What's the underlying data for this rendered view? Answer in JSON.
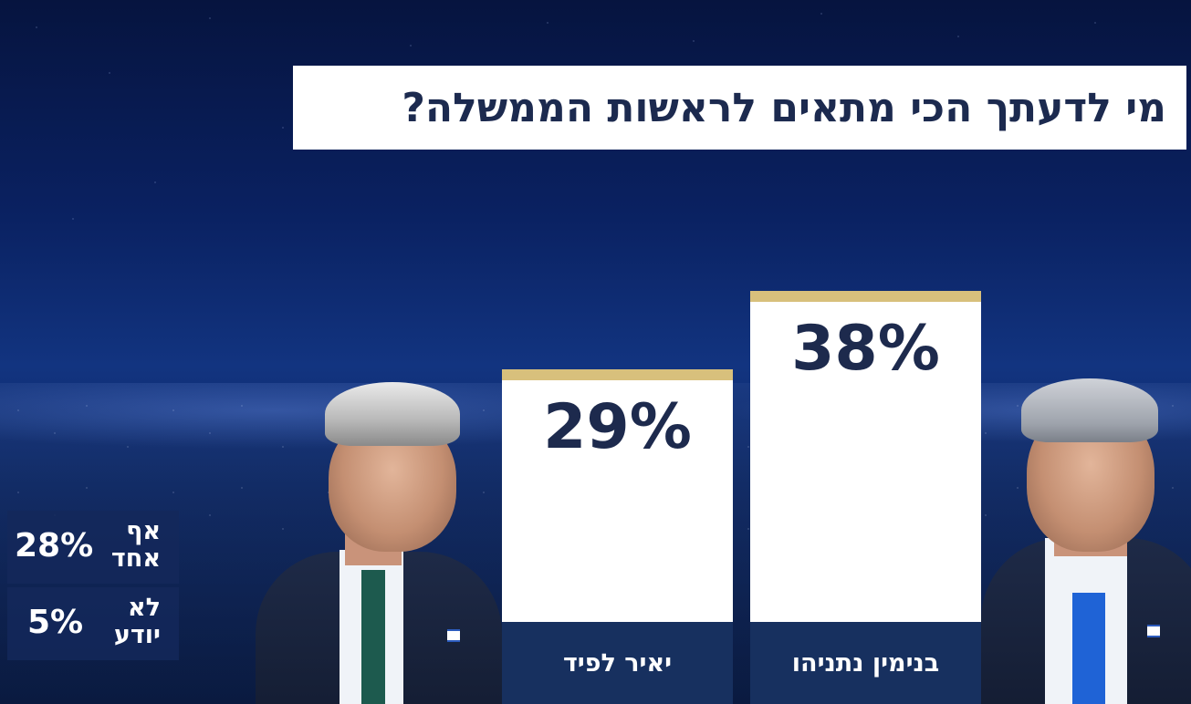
{
  "chart_data": {
    "type": "bar",
    "title": "מי לדעתך הכי מתאים לראשות הממשלה?",
    "categories": [
      "יאיר לפיד",
      "בנימין נתניהו"
    ],
    "values": [
      29,
      38
    ],
    "value_labels": [
      "29%",
      "38%"
    ],
    "bar_color": "#ffffff",
    "accent_color": "#d8c07c",
    "label_bg_color": "#17305f",
    "extra_answers": [
      {
        "label_line1": "אף",
        "label_line2": "אחד",
        "value": 28,
        "value_label": "28%"
      },
      {
        "label_line1": "לא",
        "label_line2": "יודע",
        "value": 5,
        "value_label": "5%"
      }
    ]
  }
}
